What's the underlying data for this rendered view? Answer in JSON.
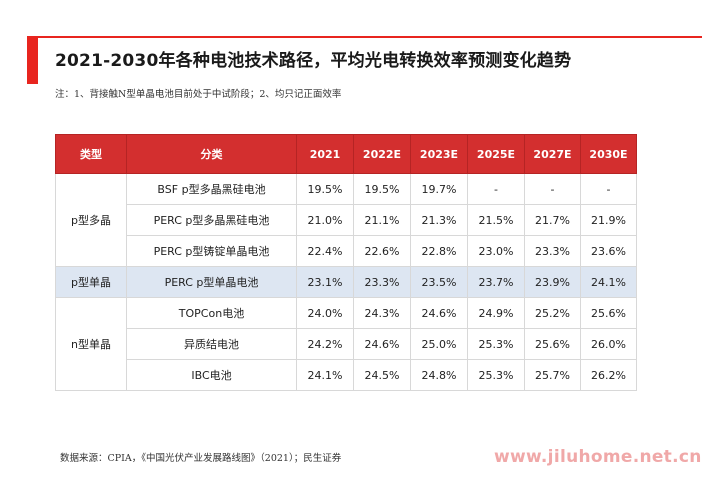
{
  "title": "2021-2030年各种电池技术路径，平均光电转换效率预测变化趋势",
  "note": "注：1、背接触N型单晶电池目前处于中试阶段；2、均只记正面效率",
  "table": {
    "headers": [
      "类型",
      "分类",
      "2021",
      "2022E",
      "2023E",
      "2025E",
      "2027E",
      "2030E"
    ],
    "groups": [
      {
        "type": "p型多晶",
        "rows": [
          {
            "category": "BSF p型多晶黑硅电池",
            "values": [
              "19.5%",
              "19.5%",
              "19.7%",
              "-",
              "-",
              "-"
            ]
          },
          {
            "category": "PERC p型多晶黑硅电池",
            "values": [
              "21.0%",
              "21.1%",
              "21.3%",
              "21.5%",
              "21.7%",
              "21.9%"
            ]
          },
          {
            "category": "PERC p型铸锭单晶电池",
            "values": [
              "22.4%",
              "22.6%",
              "22.8%",
              "23.0%",
              "23.3%",
              "23.6%"
            ]
          }
        ]
      },
      {
        "type": "p型单晶",
        "highlight": true,
        "rows": [
          {
            "category": "PERC p型单晶电池",
            "values": [
              "23.1%",
              "23.3%",
              "23.5%",
              "23.7%",
              "23.9%",
              "24.1%"
            ]
          }
        ]
      },
      {
        "type": "n型单晶",
        "rows": [
          {
            "category": "TOPCon电池",
            "values": [
              "24.0%",
              "24.3%",
              "24.6%",
              "24.9%",
              "25.2%",
              "25.6%"
            ]
          },
          {
            "category": "异质结电池",
            "values": [
              "24.2%",
              "24.6%",
              "25.0%",
              "25.3%",
              "25.6%",
              "26.0%"
            ]
          },
          {
            "category": "IBC电池",
            "values": [
              "24.1%",
              "24.5%",
              "24.8%",
              "25.3%",
              "25.7%",
              "26.2%"
            ]
          }
        ]
      }
    ]
  },
  "source": "数据来源：CPIA，《中国光伏产业发展路线图》（2021）；民生证券",
  "watermark": "www.jiluhome.net.cn",
  "colors": {
    "accent": "#e8251f",
    "header_bg": "#d32f2f",
    "highlight_row": "#dde6f2"
  }
}
